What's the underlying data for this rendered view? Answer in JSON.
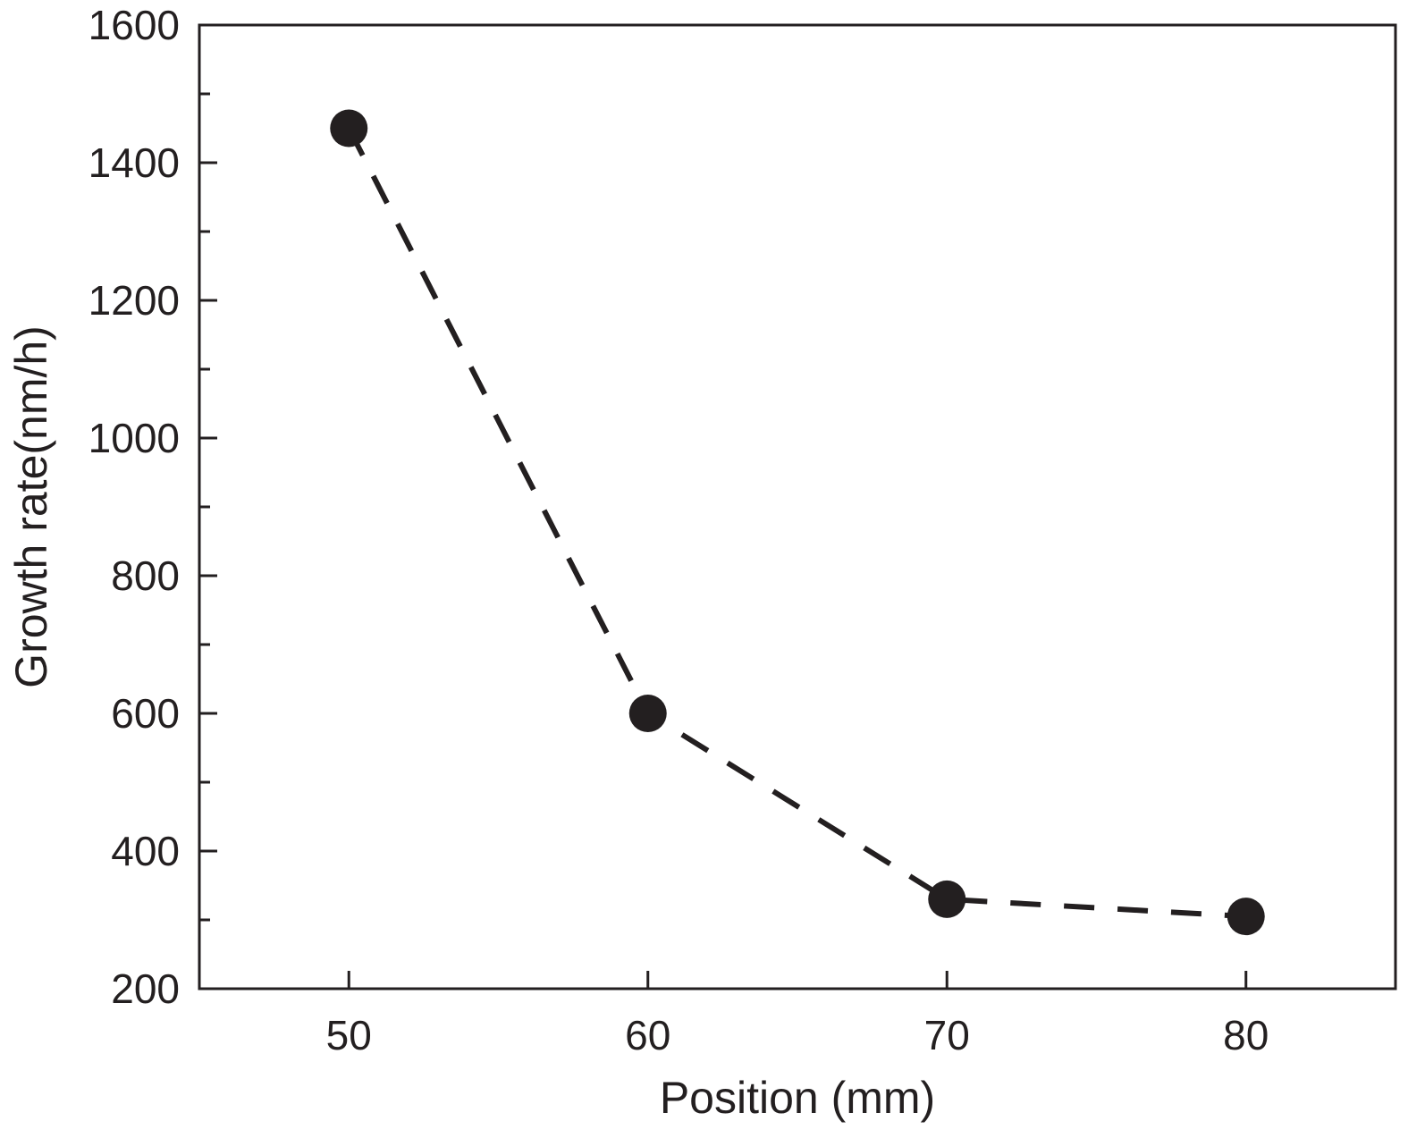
{
  "chart_data": {
    "type": "line",
    "title": "",
    "xlabel": "Position (mm)",
    "ylabel": "Growth rate(nm/h)",
    "xlim": [
      45,
      85
    ],
    "ylim": [
      200,
      1600
    ],
    "xticks": [
      50,
      60,
      70,
      80
    ],
    "yticks": [
      200,
      400,
      600,
      800,
      1000,
      1200,
      1400,
      1600
    ],
    "y_minor_step": 100,
    "grid": false,
    "legend": null,
    "series": [
      {
        "name": "Growth rate",
        "x": [
          50,
          60,
          70,
          80
        ],
        "y": [
          1450,
          600,
          330,
          305
        ],
        "line_style": "dashed",
        "marker": "filled-circle",
        "color": "#231f20"
      }
    ]
  }
}
